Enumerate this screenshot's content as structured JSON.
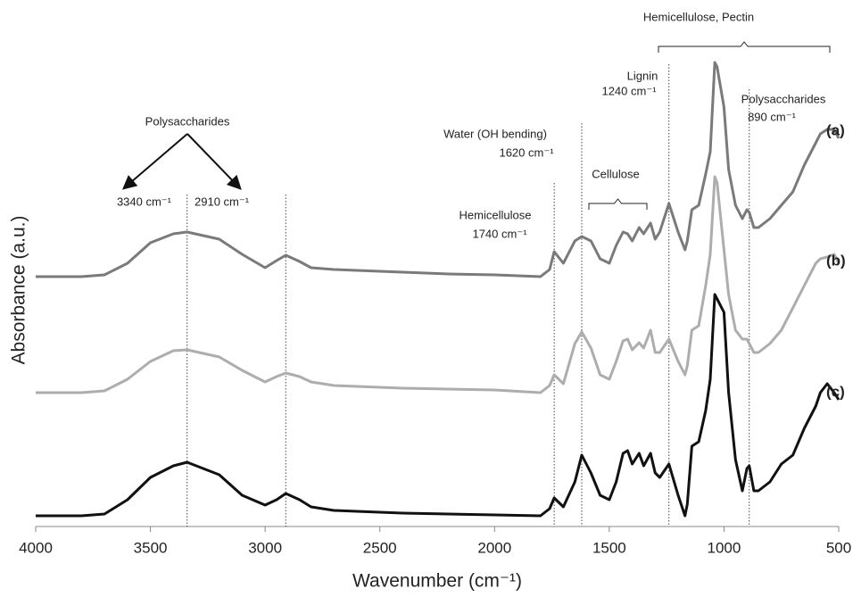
{
  "chart_data": {
    "type": "line",
    "x_label": "Wavenumber (cm⁻¹)",
    "y_label": "Absorbance (a.u.)",
    "xlim": [
      4000,
      500
    ],
    "xticks": [
      4000,
      3500,
      3000,
      2500,
      2000,
      1500,
      1000,
      500
    ],
    "ylim": [
      0,
      550
    ],
    "x": [
      4000,
      3800,
      3700,
      3600,
      3500,
      3400,
      3340,
      3200,
      3100,
      3000,
      2950,
      2910,
      2850,
      2800,
      2700,
      2600,
      2400,
      2200,
      2000,
      1800,
      1760,
      1740,
      1700,
      1650,
      1620,
      1580,
      1540,
      1500,
      1470,
      1440,
      1420,
      1400,
      1370,
      1350,
      1320,
      1300,
      1280,
      1240,
      1200,
      1170,
      1160,
      1140,
      1110,
      1080,
      1060,
      1040,
      1030,
      1000,
      980,
      950,
      920,
      900,
      890,
      870,
      850,
      800,
      750,
      700,
      650,
      600,
      580,
      550,
      520,
      500
    ],
    "series": [
      {
        "name": "(a)",
        "color": "#7a7a7a",
        "values": [
          280,
          280,
          282,
          295,
          318,
          328,
          330,
          322,
          305,
          290,
          298,
          304,
          297,
          290,
          288,
          287,
          285,
          283,
          282,
          280,
          288,
          308,
          295,
          320,
          325,
          320,
          300,
          295,
          315,
          330,
          328,
          320,
          335,
          328,
          340,
          322,
          330,
          362,
          330,
          310,
          320,
          355,
          360,
          395,
          420,
          520,
          515,
          470,
          400,
          360,
          345,
          355,
          352,
          335,
          335,
          345,
          360,
          375,
          405,
          430,
          440,
          445,
          445,
          435
        ]
      },
      {
        "name": "(b)",
        "color": "#adadad",
        "values": [
          150,
          150,
          152,
          165,
          185,
          197,
          198,
          190,
          175,
          162,
          168,
          172,
          168,
          162,
          158,
          157,
          155,
          154,
          153,
          150,
          158,
          170,
          160,
          205,
          218,
          200,
          170,
          165,
          185,
          208,
          210,
          198,
          206,
          200,
          220,
          195,
          195,
          210,
          185,
          170,
          180,
          220,
          225,
          270,
          305,
          392,
          385,
          310,
          260,
          220,
          210,
          210,
          205,
          195,
          195,
          205,
          220,
          245,
          270,
          295,
          300,
          302,
          305,
          295
        ]
      },
      {
        "name": "(c)",
        "color": "#111111",
        "values": [
          12,
          12,
          14,
          30,
          55,
          68,
          72,
          58,
          35,
          24,
          30,
          37,
          30,
          22,
          18,
          17,
          15,
          14,
          13,
          12,
          20,
          32,
          22,
          50,
          80,
          60,
          35,
          30,
          50,
          82,
          85,
          70,
          82,
          68,
          82,
          60,
          55,
          70,
          35,
          12,
          25,
          90,
          95,
          130,
          165,
          260,
          255,
          240,
          150,
          75,
          40,
          65,
          68,
          40,
          40,
          50,
          70,
          80,
          110,
          135,
          150,
          160,
          150,
          142
        ]
      }
    ],
    "reference_lines": [
      3340,
      2910,
      1740,
      1620,
      1240,
      890
    ],
    "annotations": [
      {
        "text": "Polysaccharides"
      },
      {
        "text": "3340 cm⁻¹"
      },
      {
        "text": "2910 cm⁻¹"
      },
      {
        "text": "Hemicellulose"
      },
      {
        "text": "1740 cm⁻¹"
      },
      {
        "text": "Water (OH bending)"
      },
      {
        "text": "1620 cm⁻¹"
      },
      {
        "text": "Cellulose"
      },
      {
        "text": "Lignin"
      },
      {
        "text": "1240 cm⁻¹"
      },
      {
        "text": "Hemicellulose, Pectin"
      },
      {
        "text": "Polysaccharides"
      },
      {
        "text": "890 cm⁻¹"
      }
    ]
  }
}
